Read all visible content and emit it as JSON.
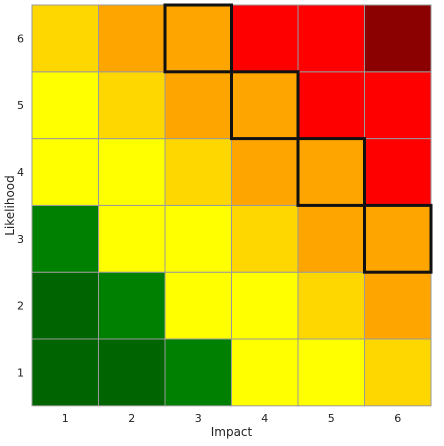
{
  "chart_data": {
    "type": "heatmap",
    "xlabel": "Impact",
    "ylabel": "Likelihood",
    "x_categories": [
      "1",
      "2",
      "3",
      "4",
      "5",
      "6"
    ],
    "y_categories": [
      "1",
      "2",
      "3",
      "4",
      "5",
      "6"
    ],
    "palette": {
      "dark-green": "#006400",
      "green": "#008000",
      "yellow": "#ffff00",
      "gold": "#ffd700",
      "light-orange": "#ffc000",
      "orange": "#ffa500",
      "red": "#ff0000",
      "dark-red": "#8b0000"
    },
    "cells": [
      [
        "dark-green",
        "dark-green",
        "green",
        "yellow",
        "yellow",
        "gold"
      ],
      [
        "dark-green",
        "green",
        "yellow",
        "yellow",
        "gold",
        "orange"
      ],
      [
        "green",
        "yellow",
        "yellow",
        "gold",
        "orange",
        "orange"
      ],
      [
        "yellow",
        "yellow",
        "gold",
        "orange",
        "orange",
        "red"
      ],
      [
        "yellow",
        "gold",
        "orange",
        "orange",
        "red",
        "red"
      ],
      [
        "gold",
        "orange",
        "orange",
        "red",
        "red",
        "dark-red"
      ]
    ],
    "highlighted_cells": [
      {
        "impact": "3",
        "likelihood": "6"
      },
      {
        "impact": "4",
        "likelihood": "5"
      },
      {
        "impact": "5",
        "likelihood": "4"
      },
      {
        "impact": "6",
        "likelihood": "3"
      }
    ],
    "grid": true,
    "legend": false
  }
}
